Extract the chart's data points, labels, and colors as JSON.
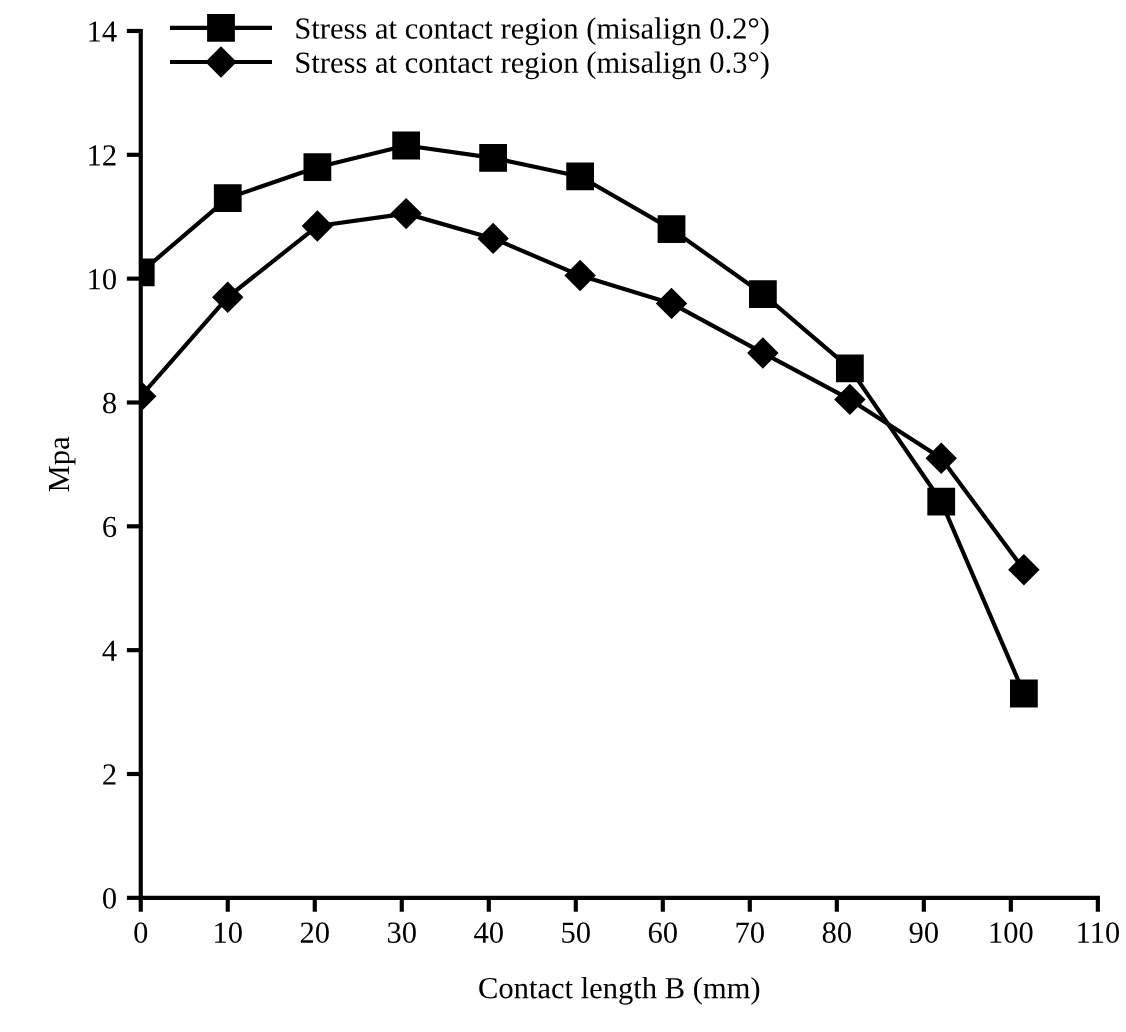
{
  "chart_data": {
    "type": "line",
    "xlabel": "Contact length B (mm)",
    "ylabel": "Mpa",
    "xlim": [
      0,
      110
    ],
    "xticks": [
      0,
      10,
      20,
      30,
      40,
      50,
      60,
      70,
      80,
      90,
      100,
      110
    ],
    "ylim": [
      0,
      14
    ],
    "yticks": [
      0,
      2,
      4,
      6,
      8,
      10,
      12,
      14
    ],
    "grid": false,
    "legend": "top left",
    "line_style": "solid",
    "series": [
      {
        "name": "Stress at contact region (misalign 0.2°)",
        "color": "#000000",
        "marker": "square",
        "x": [
          0,
          10,
          20.3,
          30.5,
          40.5,
          50.5,
          61,
          71.5,
          81.5,
          92,
          101.5
        ],
        "values": [
          10.1,
          11.3,
          11.8,
          12.15,
          11.95,
          11.65,
          10.8,
          9.75,
          8.55,
          6.4,
          3.3
        ]
      },
      {
        "name": "Stress at contact region (misalign 0.3°)",
        "color": "#000000",
        "marker": "diamond",
        "x": [
          0,
          10,
          20.3,
          30.5,
          40.5,
          50.5,
          61,
          71.5,
          81.5,
          92,
          101.5
        ],
        "values": [
          8.1,
          9.7,
          10.85,
          11.05,
          10.65,
          10.05,
          9.6,
          8.8,
          8.05,
          7.1,
          5.3
        ]
      }
    ]
  }
}
